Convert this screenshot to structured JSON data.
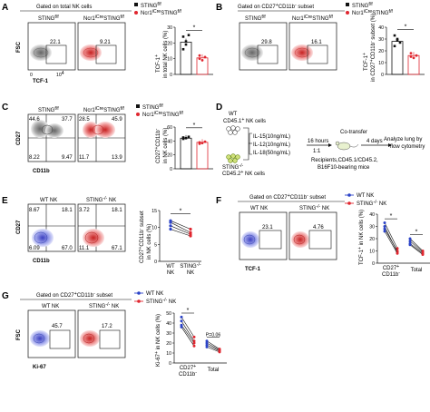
{
  "panels": {
    "A": {
      "letter": "A",
      "gate_title": "Gated on total NK cells",
      "sample1": "STING",
      "sample1_sup": "f/f",
      "sample2_pre": "Ncr1",
      "sample2_sup1": "iCre",
      "sample2_mid": "STING",
      "sample2_sup2": "f/f",
      "yaxis": "FSC",
      "xaxis": "TCF-1",
      "xtick0": "0",
      "xtick4": "10",
      "xtick4sup": "4",
      "val1": "22.1",
      "val2": "9.21",
      "legend": [
        {
          "pre": "STING",
          "sup": "f/f",
          "color": "#111111"
        },
        {
          "pre": "Ncr1",
          "sup": "iCre",
          "mid": "STING",
          "sup2": "f/f",
          "color": "#e0262f"
        }
      ],
      "bar": {
        "ylabel1": "TCF-1",
        "ylabel1sup": "+",
        "ylabel2": "in total NK cells (%)",
        "yticks": [
          "0",
          "10",
          "20",
          "30"
        ],
        "ymax": 30,
        "star": "*",
        "means": [
          20.5,
          10.5
        ]
      }
    },
    "B": {
      "letter": "B",
      "gate_title": "Gated on CD27",
      "gate_sup1": "+",
      "gate_mid": "CD11b",
      "gate_sup2": "-",
      "gate_end": " subset",
      "val1": "29.8",
      "val2": "16.1",
      "bar": {
        "ylabel1": "TCF-1",
        "ylabel1sup": "+",
        "ylabel2": "in CD27",
        "ylabel2sup": "+",
        "ylabel3": "CD11b",
        "ylabel3sup": "-",
        "ylabel4": " subset (%)",
        "yticks": [
          "0",
          "10",
          "20",
          "30",
          "40"
        ],
        "ymax": 40,
        "star": "*",
        "means": [
          28,
          16
        ]
      }
    },
    "C": {
      "letter": "C",
      "yaxis": "CD27",
      "xaxis": "CD11b",
      "q1": [
        "44.6",
        "37.7",
        "8.22",
        "9.47"
      ],
      "q2": [
        "28.5",
        "45.9",
        "11.7",
        "13.9"
      ],
      "bar": {
        "ylabel1": "CD27",
        "ylabel1sup": "+",
        "ylabel2": "CD11b",
        "ylabel2sup": "-",
        "ylabel3": "in NK cells (%)",
        "yticks": [
          "0",
          "20",
          "40",
          "60"
        ],
        "ymax": 60,
        "star": "*",
        "means": [
          44,
          38
        ]
      }
    },
    "D": {
      "letter": "D",
      "wt_line1": "WT",
      "wt_line2_pre": "CD45.1",
      "wt_line2_sup": "+",
      "wt_line2_end": " NK cells",
      "ko_line1_pre": "STING",
      "ko_line1_sup": "-/-",
      "ko_line2_pre": "CD45.2",
      "ko_line2_sup": "+",
      "ko_line2_end": " NK cells",
      "cond": [
        "IL-15(10ng/mL)",
        "IL-12(10ng/mL)",
        "IL-18(50ng/mL)"
      ],
      "time1": "16 hours",
      "ratio": "1:1",
      "cotransfer": "Co-transfer",
      "time2": "4 days",
      "analyze1": "Analyze lung by",
      "analyze2": "flow cytometry",
      "recip1": "Recipients,CD45.1/CD45.2,",
      "recip2": "B16F10-bearing mice"
    },
    "E": {
      "letter": "E",
      "sample1": "WT NK",
      "sample2_pre": "STING",
      "sample2_sup": "-/-",
      "sample2_end": " NK",
      "q1": [
        "8.67",
        "18.1",
        "6.09",
        "67.0"
      ],
      "q2": [
        "3.72",
        "18.1",
        "11.1",
        "67.1"
      ],
      "xaxis": "CD11b",
      "yaxis": "CD27",
      "bar": {
        "ylabel1": "CD27",
        "ylabel1sup": "+",
        "ylabel2": "CD11b",
        "ylabel2sup": "-",
        "ylabel3": " subset",
        "ylabel4": "in NK cells (%)",
        "yticks": [
          "0",
          "5",
          "10",
          "15"
        ],
        "ymax": 15,
        "star": "*",
        "x1a": "WT",
        "x1b": "NK",
        "x2a": "STING",
        "x2sup": "-/-",
        "x2b": "NK"
      }
    },
    "F": {
      "letter": "F",
      "gate_title": "Gated on CD27",
      "gate_sup1": "+",
      "gate_mid": "CD11b",
      "gate_sup2": "-",
      "gate_end": " subset",
      "sample1": "WT NK",
      "sample2_pre": "STING",
      "sample2_sup": "-/-",
      "sample2_end": " NK",
      "val1": "23.1",
      "val2": "4.76",
      "xaxis": "TCF-1",
      "legend": [
        {
          "label": "WT NK",
          "color": "#2b43c8"
        },
        {
          "pre": "STING",
          "sup": "-/-",
          "end": " NK",
          "color": "#e0262f"
        }
      ],
      "bar": {
        "ylabel1": "TCF-1",
        "ylabel1sup": "+",
        "ylabel2": " in NK cells (%)",
        "yticks": [
          "0",
          "10",
          "20",
          "30",
          "40"
        ],
        "ymax": 40,
        "star": "*",
        "x1a": "CD27",
        "x1sup": "+",
        "x1b": "CD11b",
        "x1bsup": "-",
        "x2": "Total"
      }
    },
    "G": {
      "letter": "G",
      "gate_title": "Gated on CD27",
      "gate_sup1": "+",
      "gate_mid": "CD11b",
      "gate_sup2": "-",
      "gate_end": " subset",
      "sample1": "WT NK",
      "sample2_pre": "STING",
      "sample2_sup": "-/-",
      "sample2_end": " NK",
      "val1": "45.7",
      "val2": "17.2",
      "xaxis": "Ki-67",
      "yaxis": "FSC",
      "legend": [
        {
          "label": "WT NK",
          "color": "#2b43c8"
        },
        {
          "pre": "STING",
          "sup": "-/-",
          "end": " NK",
          "color": "#e0262f"
        }
      ],
      "bar": {
        "ylabel1": "Ki-67",
        "ylabel1sup": "+",
        "ylabel2": " in NK cells (%)",
        "yticks": [
          "0",
          "10",
          "20",
          "30",
          "40",
          "50"
        ],
        "ymax": 50,
        "star": "*",
        "pval": "P=0.06",
        "x1a": "CD27",
        "x1sup": "+",
        "x1b": "CD11b",
        "x1bsup": "-",
        "x2": "Total"
      }
    }
  },
  "colors": {
    "wt": "#2b43c8",
    "ko": "#e0262f",
    "ctrl": "#111111"
  }
}
